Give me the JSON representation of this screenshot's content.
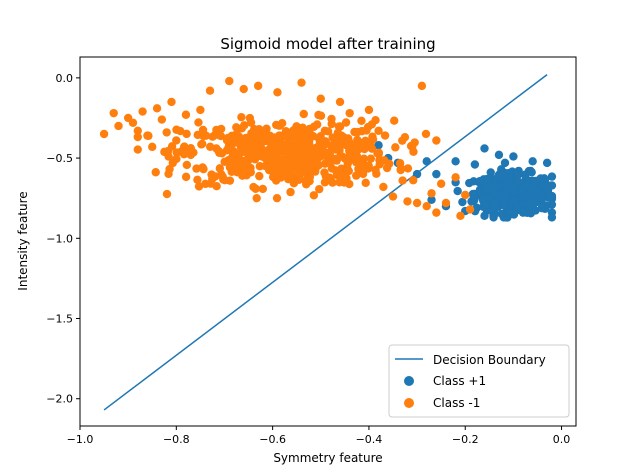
{
  "chart_data": {
    "type": "scatter",
    "title": "Sigmoid model after training",
    "xlabel": "Symmetry feature",
    "ylabel": "Intensity feature",
    "xlim": [
      -1.0,
      0.03
    ],
    "ylim": [
      -2.17,
      0.13
    ],
    "xticks": [
      -1.0,
      -0.8,
      -0.6,
      -0.4,
      -0.2,
      0.0
    ],
    "xtick_labels": [
      "−1.0",
      "−0.8",
      "−0.6",
      "−0.4",
      "−0.2",
      "0.0"
    ],
    "yticks": [
      0.0,
      -0.5,
      -1.0,
      -1.5,
      -2.0
    ],
    "ytick_labels": [
      "0.0",
      "−0.5",
      "−1.0",
      "−1.5",
      "−2.0"
    ],
    "grid": false,
    "legend_position": "lower-right",
    "decision_boundary": {
      "name": "Decision Boundary",
      "color": "#1f77b4",
      "points": [
        [
          -0.95,
          -2.07
        ],
        [
          -0.03,
          0.02
        ]
      ]
    },
    "series": [
      {
        "name": "Class +1",
        "color": "#1f77b4",
        "cluster": {
          "cx": -0.1,
          "cy": -0.72,
          "sx": 0.04,
          "sy": 0.06,
          "n": 420,
          "xmin": -0.22,
          "xmax": -0.02,
          "ymin": -0.87,
          "ymax": -0.53
        },
        "points": [
          [
            -0.38,
            -0.42
          ],
          [
            -0.36,
            -0.5
          ],
          [
            -0.34,
            -0.53
          ],
          [
            -0.3,
            -0.6
          ],
          [
            -0.28,
            -0.52
          ],
          [
            -0.26,
            -0.6
          ],
          [
            -0.22,
            -0.52
          ],
          [
            -0.18,
            -0.54
          ],
          [
            -0.16,
            -0.44
          ],
          [
            -0.13,
            -0.48
          ],
          [
            -0.1,
            -0.49
          ],
          [
            -0.06,
            -0.52
          ],
          [
            -0.03,
            -0.53
          ],
          [
            -0.02,
            -0.79
          ],
          [
            -0.04,
            -0.8
          ],
          [
            -0.08,
            -0.84
          ],
          [
            -0.12,
            -0.87
          ],
          [
            -0.16,
            -0.86
          ],
          [
            -0.2,
            -0.83
          ],
          [
            -0.24,
            -0.8
          ],
          [
            -0.27,
            -0.76
          ]
        ]
      },
      {
        "name": "Class -1",
        "color": "#ff7f0e",
        "cluster": {
          "cx": -0.57,
          "cy": -0.47,
          "sx": 0.11,
          "sy": 0.1,
          "n": 560,
          "xmin": -0.88,
          "xmax": -0.26,
          "ymin": -0.75,
          "ymax": -0.16
        },
        "points": [
          [
            -0.95,
            -0.35
          ],
          [
            -0.93,
            -0.22
          ],
          [
            -0.92,
            -0.3
          ],
          [
            -0.9,
            -0.25
          ],
          [
            -0.89,
            -0.28
          ],
          [
            -0.88,
            -0.33
          ],
          [
            -0.87,
            -0.21
          ],
          [
            -0.86,
            -0.36
          ],
          [
            -0.85,
            -0.43
          ],
          [
            -0.84,
            -0.19
          ],
          [
            -0.83,
            -0.26
          ],
          [
            -0.82,
            -0.34
          ],
          [
            -0.81,
            -0.15
          ],
          [
            -0.8,
            -0.39
          ],
          [
            -0.79,
            -0.46
          ],
          [
            -0.78,
            -0.23
          ],
          [
            -0.77,
            -0.48
          ],
          [
            -0.75,
            -0.2
          ],
          [
            -0.73,
            -0.08
          ],
          [
            -0.69,
            -0.02
          ],
          [
            -0.66,
            -0.07
          ],
          [
            -0.63,
            -0.05
          ],
          [
            -0.59,
            -0.09
          ],
          [
            -0.54,
            -0.03
          ],
          [
            -0.5,
            -0.13
          ],
          [
            -0.46,
            -0.15
          ],
          [
            -0.44,
            -0.22
          ],
          [
            -0.4,
            -0.2
          ],
          [
            -0.38,
            -0.33
          ],
          [
            -0.37,
            -0.68
          ],
          [
            -0.35,
            -0.74
          ],
          [
            -0.33,
            -0.64
          ],
          [
            -0.32,
            -0.77
          ],
          [
            -0.3,
            -0.78
          ],
          [
            -0.29,
            -0.05
          ],
          [
            -0.28,
            -0.8
          ],
          [
            -0.27,
            -0.72
          ],
          [
            -0.26,
            -0.84
          ],
          [
            -0.25,
            -0.66
          ],
          [
            -0.24,
            -0.78
          ],
          [
            -0.22,
            -0.62
          ],
          [
            -0.21,
            -0.86
          ],
          [
            -0.2,
            -0.73
          ],
          [
            -0.19,
            -0.82
          ]
        ]
      }
    ]
  }
}
